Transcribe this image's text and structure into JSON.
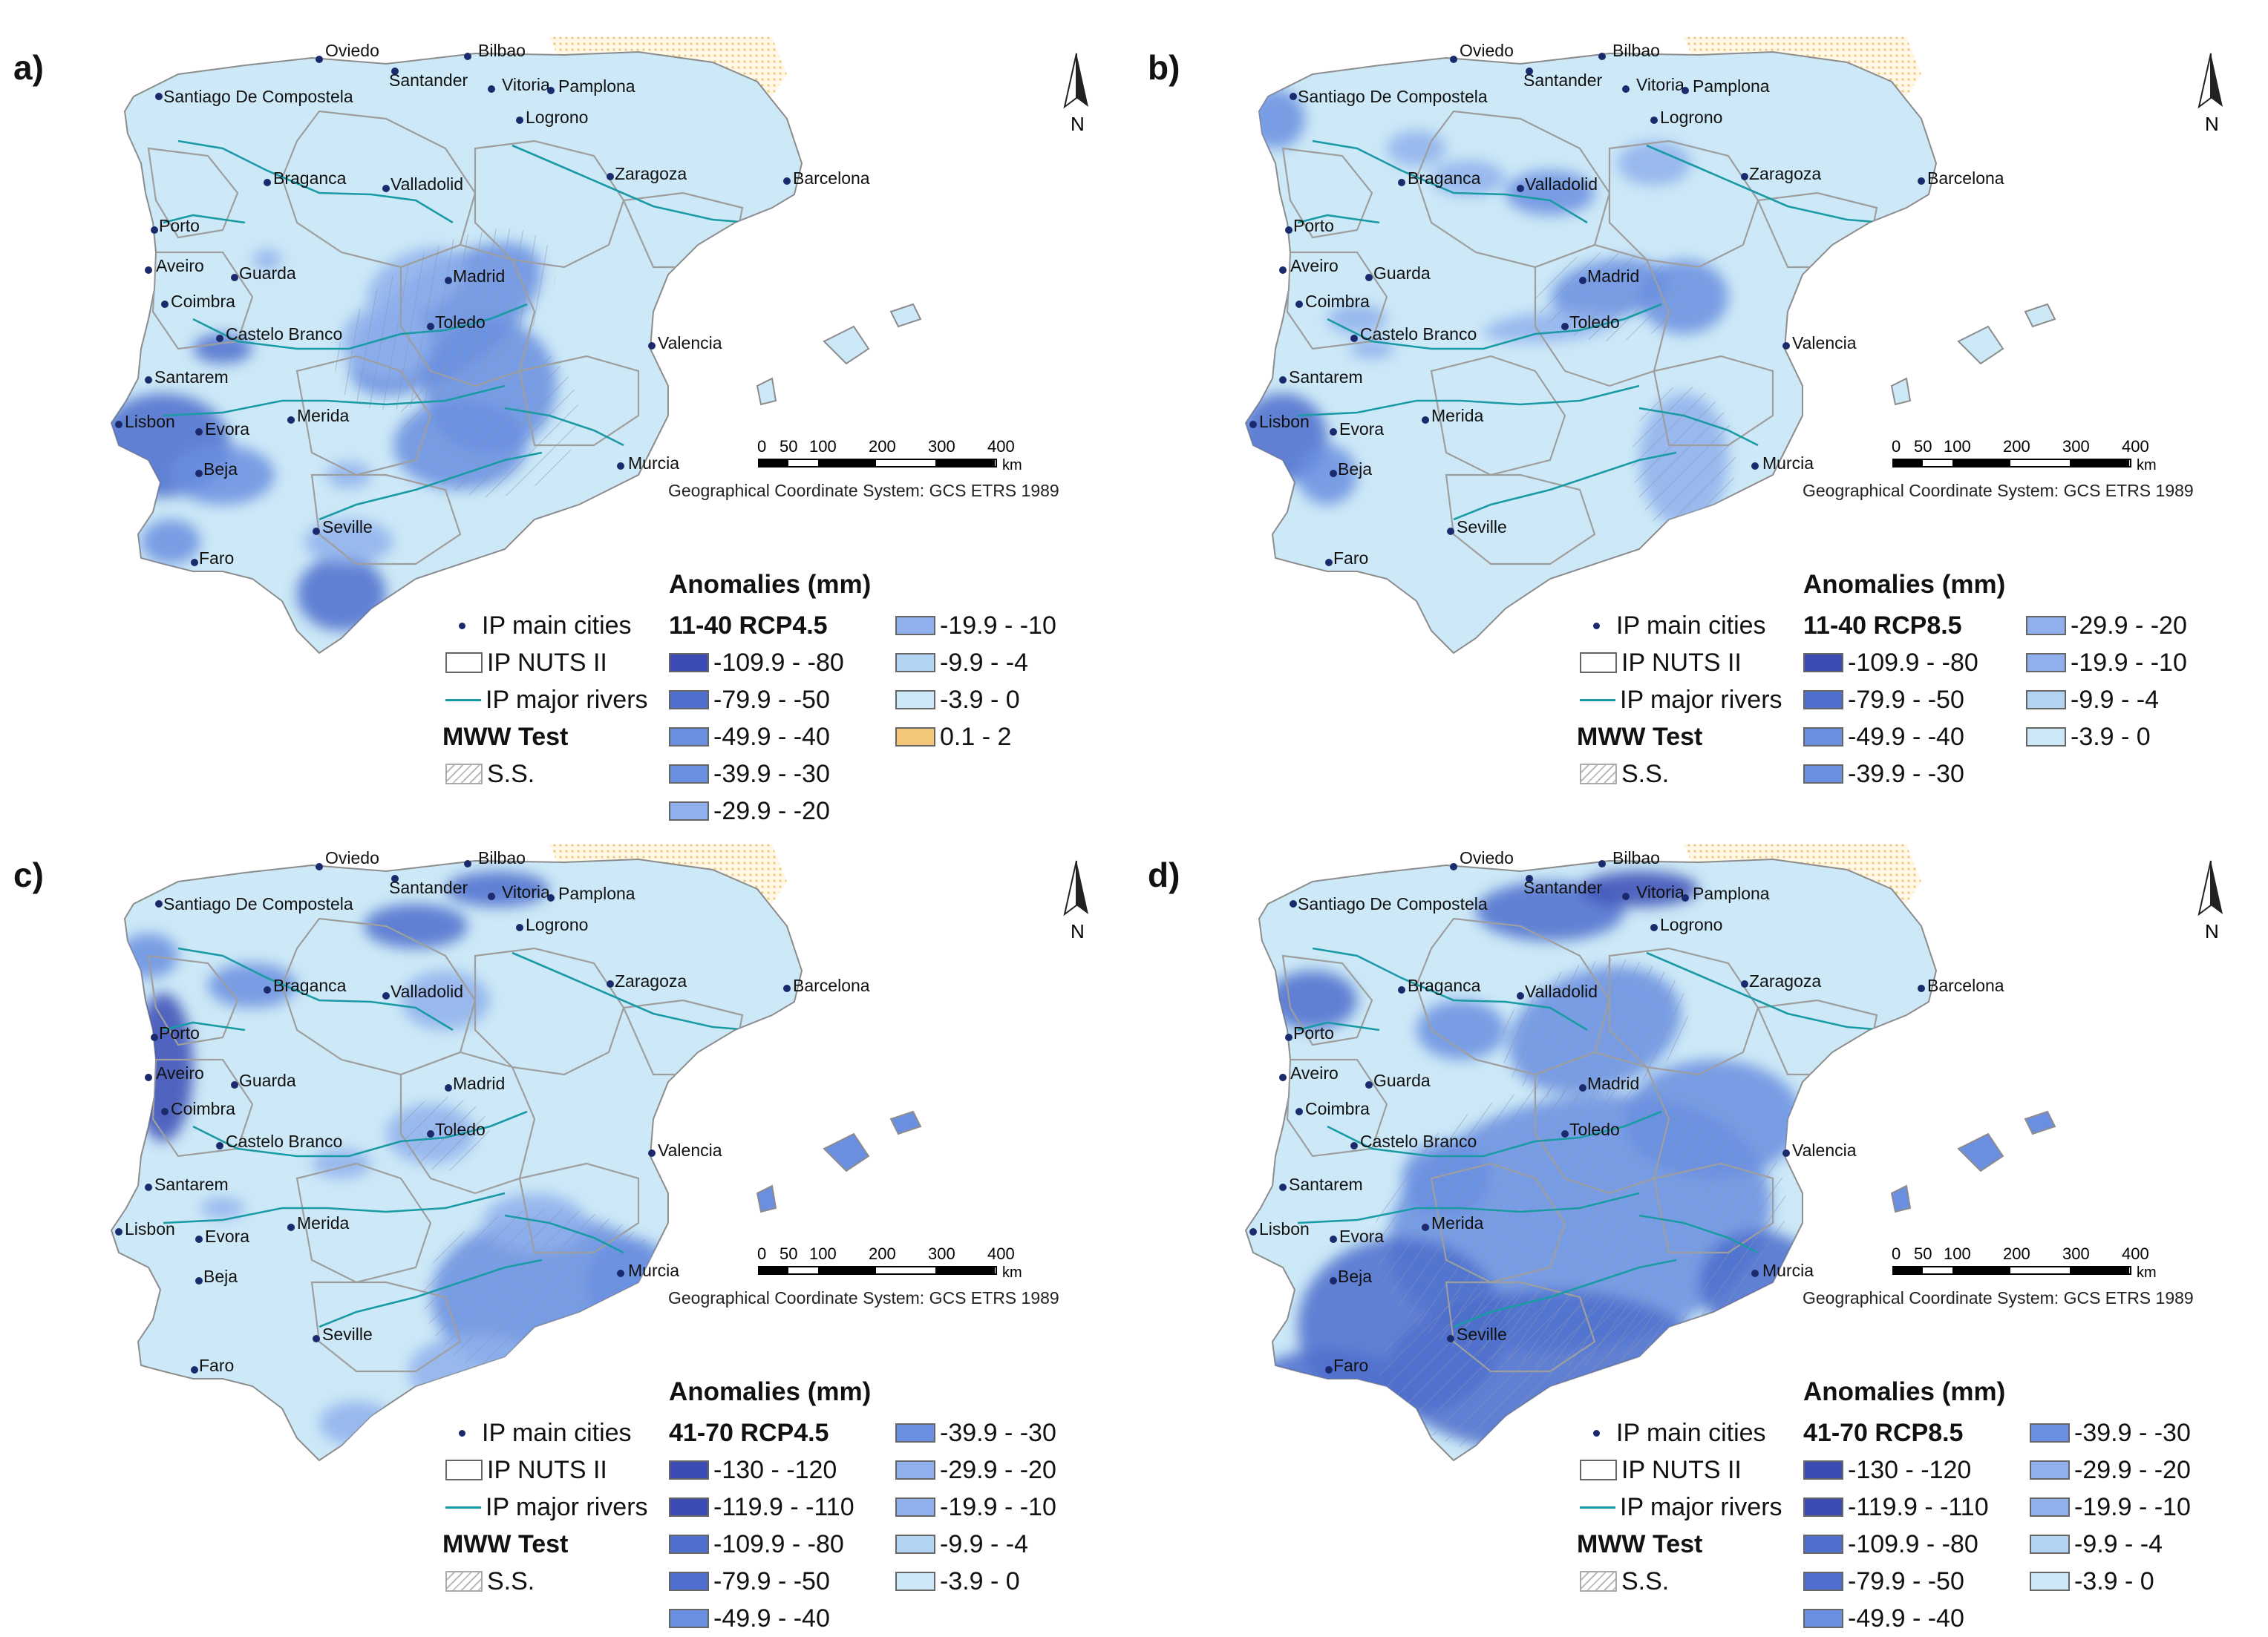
{
  "colors": {
    "sea": "#ffffff",
    "base": "#cde9f7",
    "d1": "#3b4db5",
    "d2": "#4e6fcd",
    "d3": "#6a8fe0",
    "d4": "#8fb0ec",
    "d5": "#b3d3f2",
    "positive": "#f2c77a",
    "river": "#1a9aa5",
    "border": "#9e9e9e",
    "city": "#1a2a6c"
  },
  "common": {
    "gcs_text": "Geographical Coordinate System: GCS ETRS 1989",
    "scale": {
      "ticks": [
        "0",
        "50",
        "100",
        "200",
        "300",
        "400"
      ],
      "unit": "km"
    },
    "north": "N",
    "anomalies_title": "Anomalies (mm)",
    "legend_labels": {
      "cities": "IP main cities",
      "nuts": "IP NUTS II",
      "rivers": "IP major rivers",
      "mww": "MWW Test",
      "ss": "S.S."
    }
  },
  "cities": [
    "Oviedo",
    "Santander",
    "Bilbao",
    "Vitoria",
    "Pamplona",
    "Santiago De Compostela",
    "Logrono",
    "Braganca",
    "Valladolid",
    "Zaragoza",
    "Barcelona",
    "Porto",
    "Aveiro",
    "Guarda",
    "Madrid",
    "Coimbra",
    "Toledo",
    "Castelo Branco",
    "Valencia",
    "Santarem",
    "Merida",
    "Lisbon",
    "Evora",
    "Beja",
    "Murcia",
    "Seville",
    "Faro"
  ],
  "panels": [
    {
      "label": "a)",
      "scenario": "11-40 RCP4.5",
      "classes": [
        "-109.9 - -80",
        "-79.9 - -50",
        "-49.9 - -40",
        "-39.9 - -30",
        "-29.9 - -20",
        "-19.9 - -10",
        "-9.9 - -4",
        "-3.9 - 0",
        "0.1 - 2"
      ]
    },
    {
      "label": "b)",
      "scenario": "11-40 RCP8.5",
      "classes": [
        "-109.9 - -80",
        "-79.9 - -50",
        "-49.9 - -40",
        "-39.9 - -30",
        "-29.9 - -20",
        "-19.9 - -10",
        "-9.9 - -4",
        "-3.9 - 0"
      ]
    },
    {
      "label": "c)",
      "scenario": "41-70 RCP4.5",
      "classes": [
        "-130 - -120",
        "-119.9 - -110",
        "-109.9 - -80",
        "-79.9 - -50",
        "-49.9 - -40",
        "-39.9 - -30",
        "-29.9 - -20",
        "-19.9 - -10",
        "-9.9 - -4",
        "-3.9 - 0"
      ]
    },
    {
      "label": "d)",
      "scenario": "41-70 RCP8.5",
      "classes": [
        "-130 - -120",
        "-119.9 - -110",
        "-109.9 - -80",
        "-79.9 - -50",
        "-49.9 - -40",
        "-39.9 - -30",
        "-29.9 - -20",
        "-19.9 - -10",
        "-9.9 - -4",
        "-3.9 - 0"
      ]
    }
  ]
}
